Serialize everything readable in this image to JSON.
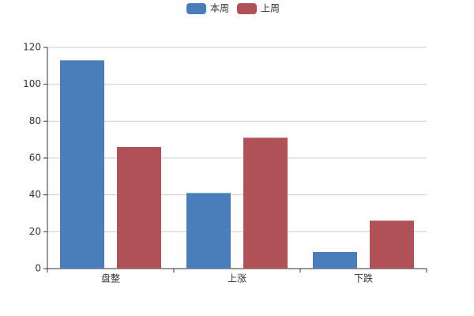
{
  "chart_data": {
    "type": "bar",
    "categories": [
      "盘整",
      "上涨",
      "下跌"
    ],
    "series": [
      {
        "name": "本周",
        "color": "#4a7ebb",
        "values": [
          113,
          41,
          9
        ]
      },
      {
        "name": "上周",
        "color": "#af5157",
        "values": [
          66,
          71,
          26
        ]
      }
    ],
    "ylim": [
      0,
      120
    ],
    "yticks": [
      0,
      20,
      40,
      60,
      80,
      100,
      120
    ],
    "grid": true,
    "legend": "top"
  }
}
